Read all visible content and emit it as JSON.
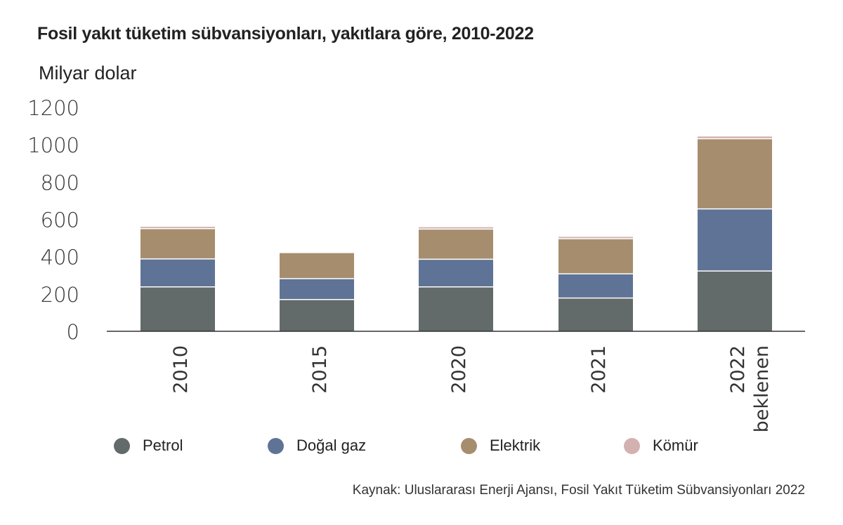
{
  "chart_data": {
    "type": "bar",
    "stacked": true,
    "title": "Fosil yakıt tüketim sübvansiyonları, yakıtlara göre, 2010-2022",
    "ylabel": "Milyar dolar",
    "categories": [
      [
        "2010"
      ],
      [
        "2015"
      ],
      [
        "2020"
      ],
      [
        "2021"
      ],
      [
        "2022",
        "beklenen"
      ]
    ],
    "yticks": [
      "0",
      "200",
      "400",
      "600",
      "800",
      "1000",
      "1200"
    ],
    "ylim": [
      0,
      1200
    ],
    "grid": false,
    "legend_position": "bottom",
    "series": [
      {
        "name": "Petrol",
        "color": "#636a6a",
        "values": [
          238,
          170,
          238,
          178,
          323
        ]
      },
      {
        "name": "Doğal gaz",
        "color": "#5f7396",
        "values": [
          150,
          112,
          148,
          130,
          333
        ]
      },
      {
        "name": "Elektrik",
        "color": "#a68d6e",
        "values": [
          162,
          137,
          162,
          188,
          376
        ]
      },
      {
        "name": "Kömür",
        "color": "#d4b1b1",
        "values": [
          10,
          0,
          10,
          10,
          12
        ]
      }
    ],
    "source": "Kaynak: Uluslararası Enerji Ajansı, Fosil Yakıt Tüketim Sübvansiyonları 2022"
  }
}
